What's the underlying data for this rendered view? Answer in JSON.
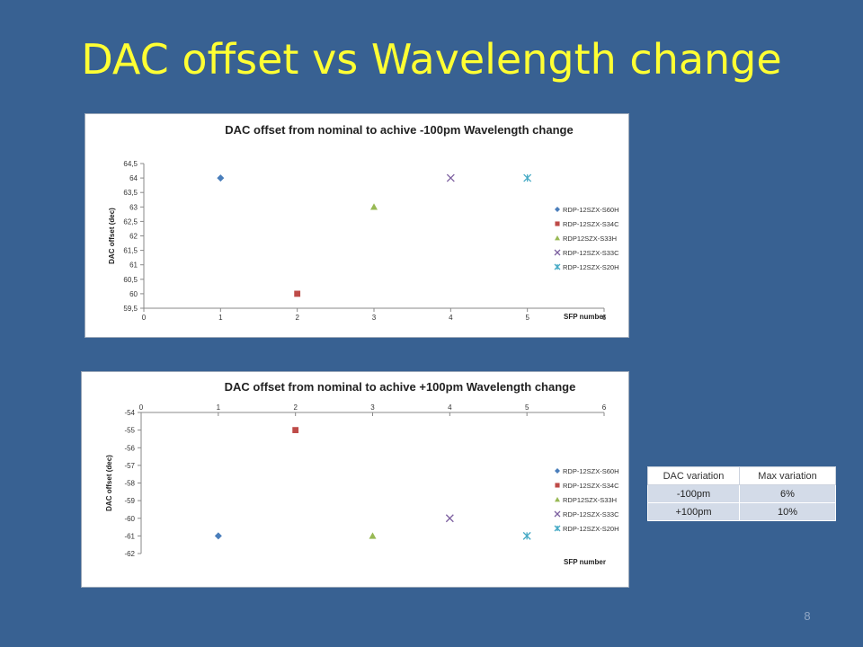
{
  "slide": {
    "title": "DAC offset vs Wavelength change",
    "page_number": "8"
  },
  "colors": {
    "background": "#386192",
    "title": "#ffff33"
  },
  "chart_data": [
    {
      "type": "scatter",
      "title": "DAC offset from nominal to achive -100pm Wavelength change",
      "xlabel": "SFP number",
      "ylabel": "DAC offset (dec)",
      "xlim": [
        0,
        6
      ],
      "ylim": [
        59.5,
        64.5
      ],
      "x_ticks": [
        "0",
        "1",
        "2",
        "3",
        "4",
        "5",
        "6"
      ],
      "y_ticks": [
        "59,5",
        "60",
        "60,5",
        "61",
        "61,5",
        "62",
        "62,5",
        "63",
        "63,5",
        "64",
        "64,5"
      ],
      "x_axis_position": "bottom",
      "grid": false,
      "legend": "right",
      "series": [
        {
          "name": "RDP-12SZX-S60H",
          "marker": "diamond",
          "color": "#4a7ebb",
          "x": [
            1
          ],
          "y": [
            64
          ]
        },
        {
          "name": "RDP-12SZX-S34C",
          "marker": "square",
          "color": "#be4b48",
          "x": [
            2
          ],
          "y": [
            60
          ]
        },
        {
          "name": "RDP12SZX-S33H",
          "marker": "triangle",
          "color": "#98b954",
          "x": [
            3
          ],
          "y": [
            63
          ]
        },
        {
          "name": "RDP-12SZX-S33C",
          "marker": "x",
          "color": "#7d60a0",
          "x": [
            4
          ],
          "y": [
            64
          ]
        },
        {
          "name": "RDP-12SZX-S20H",
          "marker": "star",
          "color": "#46aac5",
          "x": [
            5
          ],
          "y": [
            64
          ]
        }
      ]
    },
    {
      "type": "scatter",
      "title": "DAC offset from nominal to achive +100pm Wavelength change",
      "xlabel": "SFP number",
      "ylabel": "DAC offset (dec)",
      "xlim": [
        0,
        6
      ],
      "ylim": [
        -62,
        -54
      ],
      "x_ticks": [
        "0",
        "1",
        "2",
        "3",
        "4",
        "5",
        "6"
      ],
      "y_ticks": [
        "-62",
        "-61",
        "-60",
        "-59",
        "-58",
        "-57",
        "-56",
        "-55",
        "-54"
      ],
      "x_axis_position": "top",
      "grid": false,
      "legend": "right",
      "series": [
        {
          "name": "RDP-12SZX-S60H",
          "marker": "diamond",
          "color": "#4a7ebb",
          "x": [
            1
          ],
          "y": [
            -61
          ]
        },
        {
          "name": "RDP-12SZX-S34C",
          "marker": "square",
          "color": "#be4b48",
          "x": [
            2
          ],
          "y": [
            -55
          ]
        },
        {
          "name": "RDP12SZX-S33H",
          "marker": "triangle",
          "color": "#98b954",
          "x": [
            3
          ],
          "y": [
            -61
          ]
        },
        {
          "name": "RDP-12SZX-S33C",
          "marker": "x",
          "color": "#7d60a0",
          "x": [
            4
          ],
          "y": [
            -60
          ]
        },
        {
          "name": "RDP-12SZX-S20H",
          "marker": "star",
          "color": "#46aac5",
          "x": [
            5
          ],
          "y": [
            -61
          ]
        }
      ]
    }
  ],
  "table": {
    "headers": [
      "DAC variation",
      "Max variation"
    ],
    "rows": [
      [
        "-100pm",
        "6%"
      ],
      [
        "+100pm",
        "10%"
      ]
    ]
  }
}
